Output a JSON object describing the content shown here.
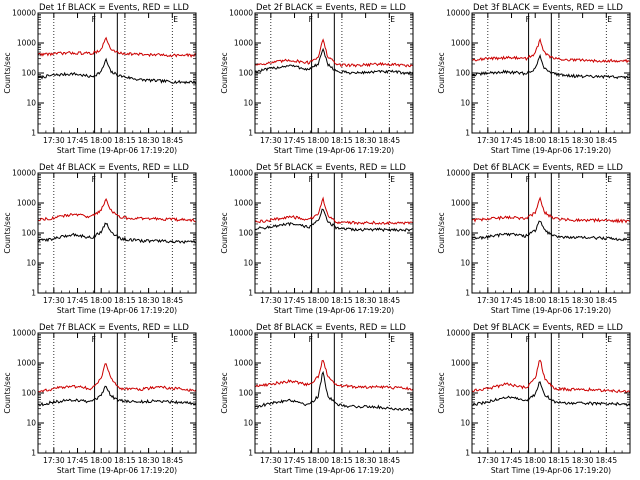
{
  "figure": {
    "title_template": "Det {n}f BLACK = Events, RED = LLD",
    "colors": {
      "events": "#000000",
      "lld": "#cc0000",
      "frame": "#000000",
      "background": "#ffffff"
    },
    "marker_label": "F",
    "end_label": "E"
  },
  "chart_data": [
    {
      "type": "line",
      "title": "Det 1f BLACK = Events, RED = LLD",
      "xlabel": "Start Time (19-Apr-06 17:19:20)",
      "ylabel": "Counts/sec",
      "xlim": [
        17.333,
        19.0
      ],
      "ylim": [
        1,
        10000
      ],
      "yscale": "log",
      "xticks": [
        17.5,
        17.75,
        18.0,
        18.25,
        18.5,
        18.75
      ],
      "xtick_labels": [
        "17:30",
        "17:45",
        "18:00",
        "18:15",
        "18:30",
        "18:45"
      ],
      "yticks": [
        1,
        10,
        100,
        1000,
        10000
      ],
      "ytick_labels": [
        "1",
        "10",
        "100",
        "1000",
        "10000"
      ],
      "dotted_vlines": [
        17.5,
        18.25,
        18.75
      ],
      "solid_vlines": [
        17.93,
        18.17
      ],
      "series": [
        {
          "name": "Events",
          "color": "#000000",
          "x": [
            17.333,
            17.5,
            17.7,
            17.9,
            18.0,
            18.05,
            18.1,
            18.2,
            18.4,
            18.6,
            18.8,
            19.0
          ],
          "values": [
            70,
            85,
            95,
            75,
            110,
            280,
            110,
            80,
            60,
            55,
            50,
            50
          ]
        },
        {
          "name": "LLD",
          "color": "#cc0000",
          "x": [
            17.333,
            17.5,
            17.7,
            17.9,
            18.0,
            18.05,
            18.1,
            18.2,
            18.4,
            18.6,
            18.8,
            19.0
          ],
          "values": [
            420,
            440,
            470,
            450,
            600,
            1500,
            600,
            460,
            420,
            400,
            390,
            390
          ]
        }
      ]
    },
    {
      "type": "line",
      "title": "Det 2f BLACK = Events, RED = LLD",
      "xlabel": "Start Time (19-Apr-06 17:19:20)",
      "ylabel": "Counts/sec",
      "xlim": [
        17.333,
        19.0
      ],
      "ylim": [
        1,
        10000
      ],
      "yscale": "log",
      "xticks": [
        17.5,
        17.75,
        18.0,
        18.25,
        18.5,
        18.75
      ],
      "xtick_labels": [
        "17:30",
        "17:45",
        "18:00",
        "18:15",
        "18:30",
        "18:45"
      ],
      "yticks": [
        1,
        10,
        100,
        1000,
        10000
      ],
      "ytick_labels": [
        "1",
        "10",
        "100",
        "1000",
        "10000"
      ],
      "dotted_vlines": [
        17.5,
        18.25,
        18.75
      ],
      "solid_vlines": [
        17.93,
        18.17
      ],
      "series": [
        {
          "name": "Events",
          "color": "#000000",
          "x": [
            17.333,
            17.5,
            17.7,
            17.9,
            18.0,
            18.05,
            18.1,
            18.2,
            18.4,
            18.6,
            18.8,
            19.0
          ],
          "values": [
            110,
            140,
            180,
            130,
            200,
            600,
            200,
            110,
            100,
            110,
            110,
            95
          ]
        },
        {
          "name": "LLD",
          "color": "#cc0000",
          "x": [
            17.333,
            17.5,
            17.7,
            17.9,
            18.0,
            18.05,
            18.1,
            18.2,
            18.4,
            18.6,
            18.8,
            19.0
          ],
          "values": [
            190,
            220,
            270,
            220,
            350,
            1300,
            350,
            190,
            180,
            200,
            190,
            170
          ]
        }
      ]
    },
    {
      "type": "line",
      "title": "Det 3f BLACK = Events, RED = LLD",
      "xlabel": "Start Time (19-Apr-06 17:19:20)",
      "ylabel": "Counts/sec",
      "xlim": [
        17.333,
        19.0
      ],
      "ylim": [
        1,
        10000
      ],
      "yscale": "log",
      "xticks": [
        17.5,
        17.75,
        18.0,
        18.25,
        18.5,
        18.75
      ],
      "xtick_labels": [
        "17:30",
        "17:45",
        "18:00",
        "18:15",
        "18:30",
        "18:45"
      ],
      "yticks": [
        1,
        10,
        100,
        1000,
        10000
      ],
      "ytick_labels": [
        "1",
        "10",
        "100",
        "1000",
        "10000"
      ],
      "dotted_vlines": [
        17.5,
        18.25,
        18.75
      ],
      "solid_vlines": [
        17.93,
        18.17
      ],
      "series": [
        {
          "name": "Events",
          "color": "#000000",
          "x": [
            17.333,
            17.5,
            17.7,
            17.9,
            18.0,
            18.05,
            18.1,
            18.2,
            18.4,
            18.6,
            18.8,
            19.0
          ],
          "values": [
            85,
            100,
            110,
            95,
            140,
            360,
            140,
            95,
            80,
            75,
            75,
            70
          ]
        },
        {
          "name": "LLD",
          "color": "#cc0000",
          "x": [
            17.333,
            17.5,
            17.7,
            17.9,
            18.0,
            18.05,
            18.1,
            18.2,
            18.4,
            18.6,
            18.8,
            19.0
          ],
          "values": [
            280,
            300,
            330,
            300,
            450,
            1300,
            450,
            300,
            270,
            260,
            260,
            250
          ]
        }
      ]
    },
    {
      "type": "line",
      "title": "Det 4f BLACK = Events, RED = LLD",
      "xlabel": "Start Time (19-Apr-06 17:19:20)",
      "ylabel": "Counts/sec",
      "xlim": [
        17.333,
        19.0
      ],
      "ylim": [
        1,
        10000
      ],
      "yscale": "log",
      "xticks": [
        17.5,
        17.75,
        18.0,
        18.25,
        18.5,
        18.75
      ],
      "xtick_labels": [
        "17:30",
        "17:45",
        "18:00",
        "18:15",
        "18:30",
        "18:45"
      ],
      "yticks": [
        1,
        10,
        100,
        1000,
        10000
      ],
      "ytick_labels": [
        "1",
        "10",
        "100",
        "1000",
        "10000"
      ],
      "dotted_vlines": [
        17.5,
        18.25,
        18.75
      ],
      "solid_vlines": [
        17.93,
        18.17
      ],
      "series": [
        {
          "name": "Events",
          "color": "#000000",
          "x": [
            17.333,
            17.5,
            17.7,
            17.9,
            18.0,
            18.05,
            18.1,
            18.2,
            18.4,
            18.6,
            18.8,
            19.0
          ],
          "values": [
            55,
            65,
            90,
            70,
            110,
            230,
            110,
            65,
            55,
            55,
            50,
            50
          ]
        },
        {
          "name": "LLD",
          "color": "#cc0000",
          "x": [
            17.333,
            17.5,
            17.7,
            17.9,
            18.0,
            18.05,
            18.1,
            18.2,
            18.4,
            18.6,
            18.8,
            19.0
          ],
          "values": [
            280,
            320,
            420,
            350,
            600,
            1300,
            600,
            330,
            300,
            300,
            280,
            260
          ]
        }
      ]
    },
    {
      "type": "line",
      "title": "Det 5f BLACK = Events, RED = LLD",
      "xlabel": "Start Time (19-Apr-06 17:19:20)",
      "ylabel": "Counts/sec",
      "xlim": [
        17.333,
        19.0
      ],
      "ylim": [
        1,
        10000
      ],
      "yscale": "log",
      "xticks": [
        17.5,
        17.75,
        18.0,
        18.25,
        18.5,
        18.75
      ],
      "xtick_labels": [
        "17:30",
        "17:45",
        "18:00",
        "18:15",
        "18:30",
        "18:45"
      ],
      "yticks": [
        1,
        10,
        100,
        1000,
        10000
      ],
      "ytick_labels": [
        "1",
        "10",
        "100",
        "1000",
        "10000"
      ],
      "dotted_vlines": [
        17.5,
        18.25,
        18.75
      ],
      "solid_vlines": [
        17.93,
        18.17
      ],
      "series": [
        {
          "name": "Events",
          "color": "#000000",
          "x": [
            17.333,
            17.5,
            17.7,
            17.9,
            18.0,
            18.05,
            18.1,
            18.2,
            18.4,
            18.6,
            18.8,
            19.0
          ],
          "values": [
            140,
            160,
            200,
            160,
            250,
            700,
            250,
            140,
            130,
            130,
            130,
            125
          ]
        },
        {
          "name": "LLD",
          "color": "#cc0000",
          "x": [
            17.333,
            17.5,
            17.7,
            17.9,
            18.0,
            18.05,
            18.1,
            18.2,
            18.4,
            18.6,
            18.8,
            19.0
          ],
          "values": [
            230,
            270,
            350,
            280,
            400,
            1400,
            400,
            230,
            220,
            220,
            220,
            210
          ]
        }
      ]
    },
    {
      "type": "line",
      "title": "Det 6f BLACK = Events, RED = LLD",
      "xlabel": "Start Time (19-Apr-06 17:19:20)",
      "ylabel": "Counts/sec",
      "xlim": [
        17.333,
        19.0
      ],
      "ylim": [
        1,
        10000
      ],
      "yscale": "log",
      "xticks": [
        17.5,
        17.75,
        18.0,
        18.25,
        18.5,
        18.75
      ],
      "xtick_labels": [
        "17:30",
        "17:45",
        "18:00",
        "18:15",
        "18:30",
        "18:45"
      ],
      "yticks": [
        1,
        10,
        100,
        1000,
        10000
      ],
      "ytick_labels": [
        "1",
        "10",
        "100",
        "1000",
        "10000"
      ],
      "dotted_vlines": [
        17.5,
        18.25,
        18.75
      ],
      "solid_vlines": [
        17.93,
        18.17
      ],
      "series": [
        {
          "name": "Events",
          "color": "#000000",
          "x": [
            17.333,
            17.5,
            17.7,
            17.9,
            18.0,
            18.05,
            18.1,
            18.2,
            18.4,
            18.6,
            18.8,
            19.0
          ],
          "values": [
            65,
            75,
            95,
            80,
            120,
            270,
            120,
            80,
            70,
            70,
            65,
            60
          ]
        },
        {
          "name": "LLD",
          "color": "#cc0000",
          "x": [
            17.333,
            17.5,
            17.7,
            17.9,
            18.0,
            18.05,
            18.1,
            18.2,
            18.4,
            18.6,
            18.8,
            19.0
          ],
          "values": [
            270,
            290,
            340,
            300,
            480,
            1400,
            480,
            300,
            270,
            270,
            260,
            250
          ]
        }
      ]
    },
    {
      "type": "line",
      "title": "Det 7f BLACK = Events, RED = LLD",
      "xlabel": "Start Time (19-Apr-06 17:19:20)",
      "ylabel": "Counts/sec",
      "xlim": [
        17.333,
        19.0
      ],
      "ylim": [
        1,
        10000
      ],
      "yscale": "log",
      "xticks": [
        17.5,
        17.75,
        18.0,
        18.25,
        18.5,
        18.75
      ],
      "xtick_labels": [
        "17:30",
        "17:45",
        "18:00",
        "18:15",
        "18:30",
        "18:45"
      ],
      "yticks": [
        1,
        10,
        100,
        1000,
        10000
      ],
      "ytick_labels": [
        "1",
        "10",
        "100",
        "1000",
        "10000"
      ],
      "dotted_vlines": [
        17.5,
        18.25,
        18.75
      ],
      "solid_vlines": [
        17.93,
        18.17
      ],
      "series": [
        {
          "name": "Events",
          "color": "#000000",
          "x": [
            17.333,
            17.5,
            17.7,
            17.9,
            18.0,
            18.05,
            18.1,
            18.2,
            18.4,
            18.6,
            18.8,
            19.0
          ],
          "values": [
            40,
            50,
            60,
            50,
            80,
            180,
            80,
            55,
            50,
            55,
            50,
            45
          ]
        },
        {
          "name": "LLD",
          "color": "#cc0000",
          "x": [
            17.333,
            17.5,
            17.7,
            17.9,
            18.0,
            18.05,
            18.1,
            18.2,
            18.4,
            18.6,
            18.8,
            19.0
          ],
          "values": [
            110,
            140,
            170,
            140,
            300,
            1100,
            300,
            140,
            130,
            160,
            140,
            120
          ]
        }
      ]
    },
    {
      "type": "line",
      "title": "Det 8f BLACK = Events, RED = LLD",
      "xlabel": "Start Time (19-Apr-06 17:19:20)",
      "ylabel": "Counts/sec",
      "xlim": [
        17.333,
        19.0
      ],
      "ylim": [
        1,
        10000
      ],
      "yscale": "log",
      "xticks": [
        17.5,
        17.75,
        18.0,
        18.25,
        18.5,
        18.75
      ],
      "xtick_labels": [
        "17:30",
        "17:45",
        "18:00",
        "18:15",
        "18:30",
        "18:45"
      ],
      "yticks": [
        1,
        10,
        100,
        1000,
        10000
      ],
      "ytick_labels": [
        "1",
        "10",
        "100",
        "1000",
        "10000"
      ],
      "dotted_vlines": [
        17.5,
        18.25,
        18.75
      ],
      "solid_vlines": [
        17.93,
        18.17
      ],
      "series": [
        {
          "name": "Events",
          "color": "#000000",
          "x": [
            17.333,
            17.5,
            17.7,
            17.9,
            18.0,
            18.05,
            18.1,
            18.2,
            18.4,
            18.6,
            18.8,
            19.0
          ],
          "values": [
            35,
            45,
            60,
            40,
            80,
            550,
            80,
            40,
            35,
            35,
            30,
            28
          ]
        },
        {
          "name": "LLD",
          "color": "#cc0000",
          "x": [
            17.333,
            17.5,
            17.7,
            17.9,
            18.0,
            18.05,
            18.1,
            18.2,
            18.4,
            18.6,
            18.8,
            19.0
          ],
          "values": [
            170,
            200,
            250,
            190,
            350,
            1400,
            350,
            180,
            160,
            160,
            150,
            140
          ]
        }
      ]
    },
    {
      "type": "line",
      "title": "Det 9f BLACK = Events, RED = LLD",
      "xlabel": "Start Time (19-Apr-06 17:19:20)",
      "ylabel": "Counts/sec",
      "xlim": [
        17.333,
        19.0
      ],
      "ylim": [
        1,
        10000
      ],
      "yscale": "log",
      "xticks": [
        17.5,
        17.75,
        18.0,
        18.25,
        18.5,
        18.75
      ],
      "xtick_labels": [
        "17:30",
        "17:45",
        "18:00",
        "18:15",
        "18:30",
        "18:45"
      ],
      "yticks": [
        1,
        10,
        100,
        1000,
        10000
      ],
      "ytick_labels": [
        "1",
        "10",
        "100",
        "1000",
        "10000"
      ],
      "dotted_vlines": [
        17.5,
        18.25,
        18.75
      ],
      "solid_vlines": [
        17.93,
        18.17
      ],
      "series": [
        {
          "name": "Events",
          "color": "#000000",
          "x": [
            17.333,
            17.5,
            17.7,
            17.9,
            18.0,
            18.05,
            18.1,
            18.2,
            18.4,
            18.6,
            18.8,
            19.0
          ],
          "values": [
            40,
            50,
            75,
            55,
            90,
            250,
            90,
            50,
            45,
            45,
            45,
            40
          ]
        },
        {
          "name": "LLD",
          "color": "#cc0000",
          "x": [
            17.333,
            17.5,
            17.7,
            17.9,
            18.0,
            18.05,
            18.1,
            18.2,
            18.4,
            18.6,
            18.8,
            19.0
          ],
          "values": [
            120,
            140,
            200,
            150,
            300,
            1400,
            300,
            140,
            130,
            130,
            120,
            110
          ]
        }
      ]
    }
  ]
}
